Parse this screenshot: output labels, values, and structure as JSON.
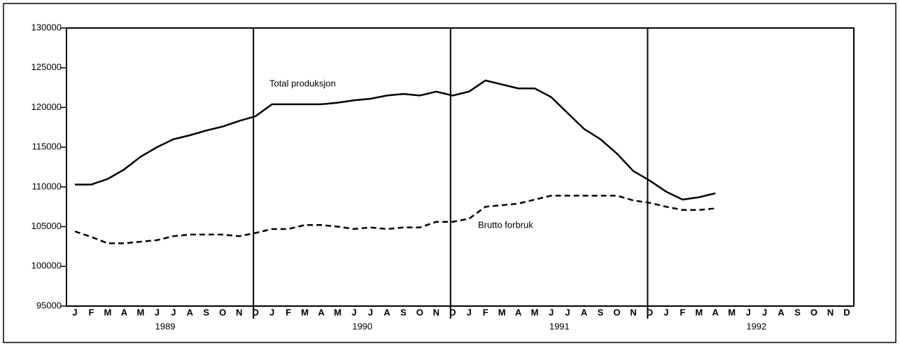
{
  "chart_data": {
    "type": "line",
    "categories": [
      "J",
      "F",
      "M",
      "A",
      "M",
      "J",
      "J",
      "A",
      "S",
      "O",
      "N",
      "D",
      "J",
      "F",
      "M",
      "A",
      "M",
      "J",
      "J",
      "A",
      "S",
      "O",
      "N",
      "D",
      "J",
      "F",
      "M",
      "A",
      "M",
      "J",
      "J",
      "A",
      "S",
      "O",
      "N",
      "D",
      "J",
      "F",
      "M",
      "A",
      "M",
      "J",
      "J",
      "A",
      "S",
      "O",
      "N",
      "D"
    ],
    "years": [
      "1989",
      "1990",
      "1991",
      "1992"
    ],
    "series": [
      {
        "name": "Total produksjon",
        "color": "#000000",
        "style": "solid",
        "values": [
          110300,
          110300,
          111000,
          112200,
          113800,
          115000,
          116000,
          116500,
          117100,
          117600,
          118300,
          118900,
          120400,
          120400,
          120400,
          120400,
          120600,
          120900,
          121100,
          121500,
          121700,
          121500,
          122000,
          121500,
          122000,
          123400,
          122900,
          122400,
          122400,
          121300,
          119300,
          117300,
          116000,
          114200,
          112000,
          110800,
          109400,
          108400,
          108700,
          109200,
          null,
          null,
          null,
          null,
          null,
          null,
          null,
          null
        ]
      },
      {
        "name": "Brutto forbruk",
        "color": "#000000",
        "style": "dashed",
        "values": [
          104400,
          103700,
          102900,
          102900,
          103100,
          103300,
          103800,
          104000,
          104000,
          104000,
          103800,
          104200,
          104700,
          104700,
          105200,
          105200,
          105000,
          104700,
          104900,
          104700,
          104900,
          104900,
          105600,
          105600,
          106000,
          107500,
          107700,
          107900,
          108400,
          108900,
          108900,
          108900,
          108900,
          108900,
          108300,
          108000,
          107500,
          107100,
          107100,
          107300,
          null,
          null,
          null,
          null,
          null,
          null,
          null,
          null
        ]
      }
    ],
    "ylim": [
      95000,
      130000
    ],
    "yticks": [
      95000,
      100000,
      105000,
      110000,
      115000,
      120000,
      125000,
      130000
    ],
    "grid": false
  }
}
